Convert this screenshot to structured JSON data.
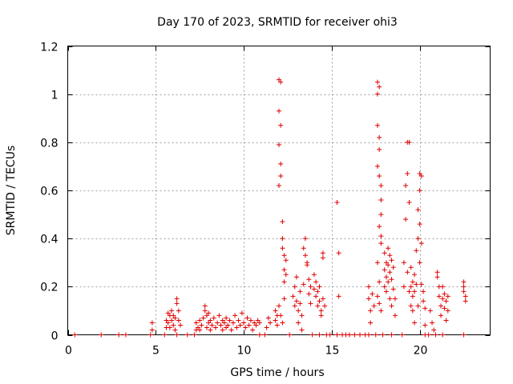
{
  "chart_data": {
    "type": "scatter",
    "title": "Day 170 of 2023, SRMTID for receiver ohi3",
    "xlabel": "GPS time / hours",
    "ylabel": "SRMTID / TECUs",
    "xlim": [
      0,
      24
    ],
    "ylim": [
      0,
      1.2
    ],
    "xticks": [
      0,
      5,
      10,
      15,
      20
    ],
    "yticks": [
      0,
      0.2,
      0.4,
      0.6,
      0.8,
      1,
      1.2
    ],
    "ytick_labels": [
      "0",
      "0.2",
      "0.4",
      "0.6",
      "0.8",
      "1",
      "1.2"
    ],
    "grid": true,
    "marker": "+",
    "color": "#e00000",
    "series": [
      {
        "name": "SRMTID",
        "points": [
          [
            0.4,
            0
          ],
          [
            1.9,
            0
          ],
          [
            2.9,
            0
          ],
          [
            3.3,
            0
          ],
          [
            4.7,
            0
          ],
          [
            4.8,
            0.02
          ],
          [
            4.8,
            0.05
          ],
          [
            5.5,
            0
          ],
          [
            5.6,
            0.03
          ],
          [
            5.6,
            0.06
          ],
          [
            5.7,
            0.09
          ],
          [
            5.7,
            0.05
          ],
          [
            5.8,
            0.08
          ],
          [
            5.8,
            0.03
          ],
          [
            5.9,
            0.1
          ],
          [
            5.9,
            0.06
          ],
          [
            6.0,
            0.04
          ],
          [
            6.0,
            0.08
          ],
          [
            6.1,
            0.02
          ],
          [
            6.1,
            0.07
          ],
          [
            6.2,
            0.13
          ],
          [
            6.2,
            0.15
          ],
          [
            6.3,
            0.06
          ],
          [
            6.3,
            0.1
          ],
          [
            6.4,
            0.04
          ],
          [
            6.2,
            0.0
          ],
          [
            6.8,
            0
          ],
          [
            7.2,
            0
          ],
          [
            7.3,
            0.02
          ],
          [
            7.3,
            0.05
          ],
          [
            7.4,
            0.03
          ],
          [
            7.5,
            0.06
          ],
          [
            7.5,
            0.02
          ],
          [
            7.6,
            0.04
          ],
          [
            7.7,
            0.07
          ],
          [
            7.8,
            0.1
          ],
          [
            7.8,
            0.12
          ],
          [
            7.9,
            0.03
          ],
          [
            7.9,
            0.08
          ],
          [
            8.0,
            0.05
          ],
          [
            8.0,
            0.09
          ],
          [
            8.1,
            0.02
          ],
          [
            8.1,
            0.06
          ],
          [
            8.2,
            0.04
          ],
          [
            8.3,
            0.07
          ],
          [
            8.4,
            0.03
          ],
          [
            8.5,
            0.05
          ],
          [
            8.6,
            0.08
          ],
          [
            8.7,
            0.04
          ],
          [
            8.8,
            0.02
          ],
          [
            8.8,
            0.06
          ],
          [
            8.9,
            0.05
          ],
          [
            9.0,
            0.03
          ],
          [
            9.0,
            0.07
          ],
          [
            9.1,
            0.04
          ],
          [
            9.2,
            0.06
          ],
          [
            9.3,
            0.02
          ],
          [
            9.4,
            0.05
          ],
          [
            9.5,
            0.08
          ],
          [
            9.6,
            0.03
          ],
          [
            9.7,
            0.06
          ],
          [
            9.8,
            0.04
          ],
          [
            9.9,
            0.09
          ],
          [
            10.0,
            0.05
          ],
          [
            10.1,
            0.03
          ],
          [
            10.2,
            0.07
          ],
          [
            10.3,
            0.04
          ],
          [
            10.4,
            0.06
          ],
          [
            10.5,
            0.02
          ],
          [
            10.6,
            0.05
          ],
          [
            10.7,
            0.04
          ],
          [
            10.8,
            0.06
          ],
          [
            10.9,
            0.05
          ],
          [
            10.9,
            0.0
          ],
          [
            11.2,
            0
          ],
          [
            11.3,
            0.03
          ],
          [
            11.4,
            0.07
          ],
          [
            11.5,
            0.05
          ],
          [
            11.8,
            0.1
          ],
          [
            11.8,
            0.06
          ],
          [
            11.9,
            0.08
          ],
          [
            11.9,
            0.04
          ],
          [
            12.0,
            1.06
          ],
          [
            12.0,
            0.93
          ],
          [
            12.0,
            0.79
          ],
          [
            12.0,
            0.62
          ],
          [
            12.1,
            1.05
          ],
          [
            12.1,
            0.87
          ],
          [
            12.1,
            0.71
          ],
          [
            12.1,
            0.66
          ],
          [
            12.2,
            0.47
          ],
          [
            12.2,
            0.4
          ],
          [
            12.2,
            0.36
          ],
          [
            12.3,
            0.33
          ],
          [
            12.3,
            0.27
          ],
          [
            12.3,
            0.22
          ],
          [
            12.4,
            0.31
          ],
          [
            12.4,
            0.25
          ],
          [
            12.0,
            0.12
          ],
          [
            12.1,
            0.08
          ],
          [
            12.2,
            0.05
          ],
          [
            12.3,
            0.15
          ],
          [
            12.6,
            0
          ],
          [
            12.8,
            0.16
          ],
          [
            12.9,
            0.2
          ],
          [
            12.9,
            0.12
          ],
          [
            13.0,
            0.24
          ],
          [
            13.0,
            0.14
          ],
          [
            13.1,
            0.1
          ],
          [
            13.1,
            0.05
          ],
          [
            13.2,
            0.18
          ],
          [
            13.2,
            0.13
          ],
          [
            13.3,
            0.08
          ],
          [
            13.3,
            0.02
          ],
          [
            13.4,
            0.21
          ],
          [
            13.4,
            0.36
          ],
          [
            13.5,
            0.4
          ],
          [
            13.5,
            0.33
          ],
          [
            13.6,
            0.29
          ],
          [
            13.6,
            0.3
          ],
          [
            13.7,
            0.23
          ],
          [
            13.7,
            0.17
          ],
          [
            13.8,
            0.2
          ],
          [
            13.8,
            0.13
          ],
          [
            13.9,
            0.0
          ],
          [
            14.0,
            0.25
          ],
          [
            14.0,
            0.19
          ],
          [
            14.1,
            0.16
          ],
          [
            14.1,
            0.22
          ],
          [
            14.2,
            0.12
          ],
          [
            14.2,
            0.18
          ],
          [
            14.3,
            0.14
          ],
          [
            14.3,
            0.2
          ],
          [
            14.4,
            0.1
          ],
          [
            14.4,
            0.08
          ],
          [
            14.5,
            0.15
          ],
          [
            14.5,
            0.32
          ],
          [
            14.5,
            0.34
          ],
          [
            14.6,
            0.12
          ],
          [
            14.3,
            0
          ],
          [
            14.7,
            0
          ],
          [
            14.9,
            0
          ],
          [
            15.3,
            0
          ],
          [
            15.3,
            0.55
          ],
          [
            15.4,
            0.34
          ],
          [
            15.4,
            0.16
          ],
          [
            15.6,
            0
          ],
          [
            15.8,
            0
          ],
          [
            16.0,
            0
          ],
          [
            16.3,
            0
          ],
          [
            16.6,
            0
          ],
          [
            16.9,
            0
          ],
          [
            17.1,
            0
          ],
          [
            17.1,
            0.2
          ],
          [
            17.1,
            0.15
          ],
          [
            17.2,
            0.1
          ],
          [
            17.2,
            0.05
          ],
          [
            17.3,
            0.17
          ],
          [
            17.4,
            0.12
          ],
          [
            17.5,
            0
          ],
          [
            17.6,
            1.05
          ],
          [
            17.6,
            1.0
          ],
          [
            17.6,
            0.87
          ],
          [
            17.7,
            1.03
          ],
          [
            17.7,
            0.82
          ],
          [
            17.7,
            0.77
          ],
          [
            17.6,
            0.7
          ],
          [
            17.7,
            0.66
          ],
          [
            17.8,
            0.62
          ],
          [
            17.8,
            0.56
          ],
          [
            17.8,
            0.5
          ],
          [
            17.7,
            0.45
          ],
          [
            17.8,
            0.41
          ],
          [
            17.8,
            0.38
          ],
          [
            17.6,
            0.3
          ],
          [
            17.7,
            0.22
          ],
          [
            17.6,
            0.16
          ],
          [
            17.7,
            0.13
          ],
          [
            17.8,
            0.1
          ],
          [
            17.9,
            0.0
          ],
          [
            18.0,
            0.34
          ],
          [
            18.0,
            0.27
          ],
          [
            18.0,
            0.2
          ],
          [
            18.1,
            0.3
          ],
          [
            18.1,
            0.24
          ],
          [
            18.1,
            0.18
          ],
          [
            18.2,
            0.36
          ],
          [
            18.2,
            0.29
          ],
          [
            18.2,
            0.22
          ],
          [
            18.3,
            0.33
          ],
          [
            18.3,
            0.26
          ],
          [
            18.3,
            0.15
          ],
          [
            18.4,
            0.31
          ],
          [
            18.4,
            0.23
          ],
          [
            18.4,
            0.12
          ],
          [
            18.5,
            0.28
          ],
          [
            18.5,
            0.19
          ],
          [
            18.6,
            0.15
          ],
          [
            18.6,
            0.08
          ],
          [
            18.4,
            0
          ],
          [
            19.0,
            0
          ],
          [
            19.1,
            0.2
          ],
          [
            19.1,
            0.3
          ],
          [
            19.2,
            0.48
          ],
          [
            19.2,
            0.62
          ],
          [
            19.3,
            0.8
          ],
          [
            19.3,
            0.67
          ],
          [
            19.3,
            0.26
          ],
          [
            19.4,
            0.8
          ],
          [
            19.4,
            0.55
          ],
          [
            19.4,
            0.18
          ],
          [
            19.5,
            0.28
          ],
          [
            19.5,
            0.2
          ],
          [
            19.5,
            0.12
          ],
          [
            19.6,
            0.22
          ],
          [
            19.6,
            0.16
          ],
          [
            19.6,
            0.1
          ],
          [
            19.7,
            0.25
          ],
          [
            19.7,
            0.18
          ],
          [
            19.7,
            0.05
          ],
          [
            19.8,
            0.35
          ],
          [
            19.8,
            0.21
          ],
          [
            19.9,
            0.52
          ],
          [
            19.9,
            0.4
          ],
          [
            19.9,
            0.12
          ],
          [
            20.0,
            0.67
          ],
          [
            20.0,
            0.6
          ],
          [
            20.0,
            0.46
          ],
          [
            20.0,
            0.3
          ],
          [
            20.1,
            0.66
          ],
          [
            20.1,
            0.38
          ],
          [
            20.1,
            0.21
          ],
          [
            20.2,
            0.18
          ],
          [
            20.2,
            0.14
          ],
          [
            20.3,
            0.11
          ],
          [
            20.3,
            0.04
          ],
          [
            20.3,
            0
          ],
          [
            20.5,
            0
          ],
          [
            20.6,
            0.1
          ],
          [
            20.7,
            0.05
          ],
          [
            20.8,
            0.02
          ],
          [
            20.9,
            0
          ],
          [
            21.0,
            0.24
          ],
          [
            21.0,
            0.26
          ],
          [
            21.1,
            0.2
          ],
          [
            21.1,
            0.16
          ],
          [
            21.2,
            0.12
          ],
          [
            21.2,
            0.08
          ],
          [
            21.3,
            0.15
          ],
          [
            21.3,
            0.2
          ],
          [
            21.4,
            0.17
          ],
          [
            21.4,
            0.11
          ],
          [
            21.5,
            0.14
          ],
          [
            21.5,
            0.06
          ],
          [
            21.6,
            0.16
          ],
          [
            21.6,
            0.1
          ],
          [
            21.3,
            0.0
          ],
          [
            22.5,
            0.22
          ],
          [
            22.5,
            0.2
          ],
          [
            22.5,
            0.18
          ],
          [
            22.6,
            0.16
          ],
          [
            22.6,
            0.14
          ],
          [
            22.5,
            0
          ]
        ]
      }
    ]
  }
}
